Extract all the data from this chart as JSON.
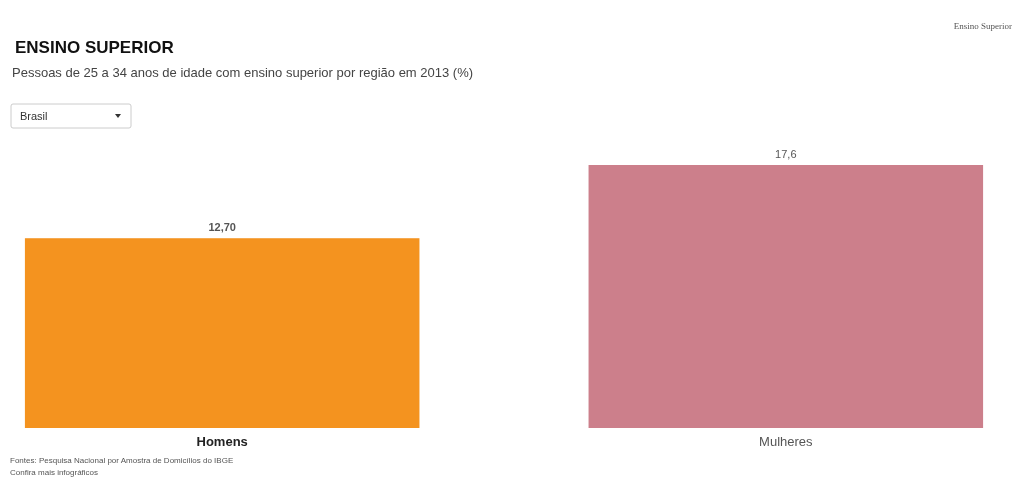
{
  "chart_data": {
    "type": "bar",
    "title": "ENSINO SUPERIOR",
    "subtitle": "Pessoas de 25 a 34 anos de idade com ensino superior por região em 2013 (%)",
    "categories": [
      "Homens",
      "Mulheres"
    ],
    "values": [
      12.7,
      17.6
    ],
    "value_labels": [
      "12,70",
      "17,6"
    ],
    "colors": [
      "#f4931f",
      "#cc7f8b"
    ],
    "annotations": [
      "Ensino Superior",
      "Brasil",
      "Fontes: Pesquisa Nacional por Amostra de Domicílios do IBGE",
      "Confira mais infográficos"
    ]
  }
}
